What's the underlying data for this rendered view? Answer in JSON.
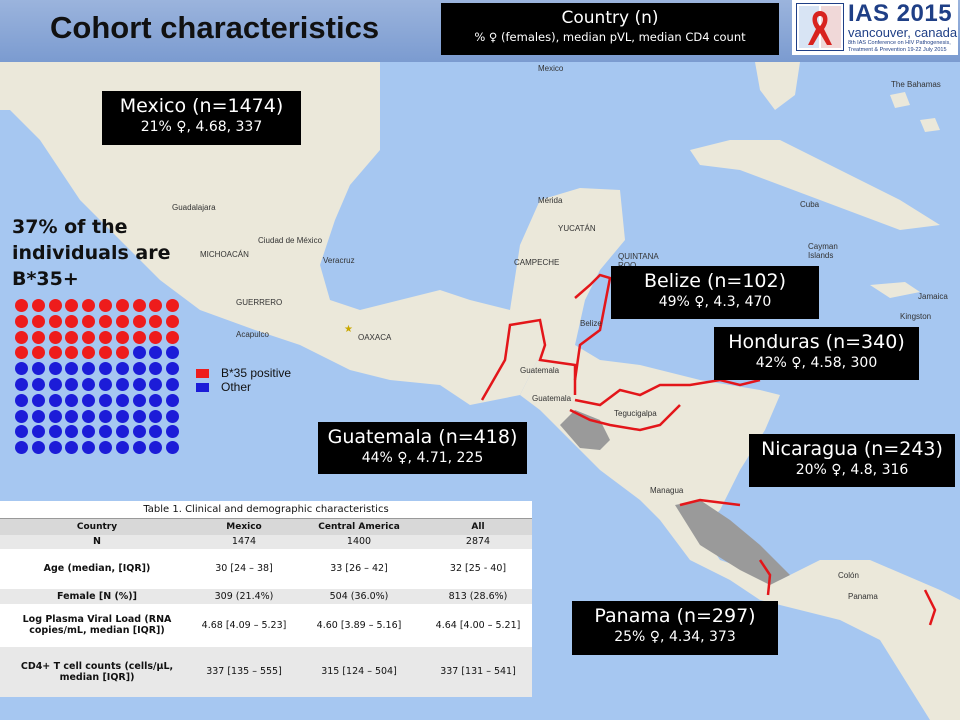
{
  "title": "Cohort characteristics",
  "key_box": {
    "heading": "Country (n)",
    "subheading": "% ♀ (females), median pVL, median CD4 count"
  },
  "logo": {
    "name": "IAS 2015",
    "city": "vancouver, canada",
    "tagline": "8th IAS Conference on HIV Pathogenesis, Treatment & Prevention 19-22 July 2015"
  },
  "countries": {
    "mexico": {
      "heading": "Mexico (n=1474)",
      "stats": "21% ♀, 4.68, 337"
    },
    "belize": {
      "heading": "Belize (n=102)",
      "stats": "49% ♀, 4.3, 470"
    },
    "honduras": {
      "heading": "Honduras (n=340)",
      "stats": "42% ♀, 4.58, 300"
    },
    "guatemala": {
      "heading": "Guatemala (n=418)",
      "stats": "44% ♀, 4.71, 225"
    },
    "nicaragua": {
      "heading": "Nicaragua (n=243)",
      "stats": "20% ♀, 4.8, 316"
    },
    "panama": {
      "heading": "Panama (n=297)",
      "stats": "25% ♀, 4.34, 373"
    }
  },
  "b35": {
    "text": "37% of the individuals are B*35+",
    "positive_count": 37,
    "total": 100,
    "legend": [
      "B*35 positive",
      "Other"
    ],
    "colors": {
      "positive": "#ee1c1c",
      "other": "#1c1cd8"
    }
  },
  "map_labels": {
    "mexico": "Mexico",
    "the_bahamas": "The Bahamas",
    "cuba": "Cuba",
    "cayman_islands": "Cayman Islands",
    "jamaica": "Jamaica",
    "guadalajara": "Guadalajara",
    "michoacan": "Michoacán",
    "ciudad_de_mexico": "Ciudad de México",
    "veracruz": "Veracruz",
    "guerrero": "Guerrero",
    "oaxaca": "Oaxaca",
    "acapulco": "Acapulco",
    "merida": "Mérida",
    "yucatan": "Yucatán",
    "campeche": "Campeche",
    "quintana_roo": "Quintana Roo",
    "belize_map": "Belize",
    "guatemala_map": "Guatemala",
    "guatemala_city": "Guatemala",
    "tegucigalpa": "Tegucigalpa",
    "managua": "Managua",
    "panama_map": "Panama",
    "colon": "Colón",
    "kingston": "Kingston"
  },
  "table": {
    "caption": "Table 1. Clinical and demographic characteristics",
    "columns": [
      "Country",
      "Mexico",
      "Central America",
      "All"
    ],
    "rows": [
      {
        "label": "N",
        "values": [
          "1474",
          "1400",
          "2874"
        ]
      },
      {
        "label": "Age (median, [IQR])",
        "values": [
          "30 [24 – 38]",
          "33 [26 – 42]",
          "32 [25 - 40]"
        ]
      },
      {
        "label": "Female [N (%)]",
        "values": [
          "309 (21.4%)",
          "504 (36.0%)",
          "813 (28.6%)"
        ]
      },
      {
        "label": "Log Plasma Viral Load (RNA copies/mL, median [IQR])",
        "values": [
          "4.68 [4.09 – 5.23]",
          "4.60 [3.89 – 5.16]",
          "4.64 [4.00 – 5.21]"
        ]
      },
      {
        "label": "CD4+ T cell counts (cells/µL, median [IQR])",
        "values": [
          "337 [135 – 555]",
          "315 [124 – 504]",
          "337 [131 – 541]"
        ]
      }
    ]
  },
  "colors": {
    "border_red": "#e3161a",
    "sea": "#a6c7f1",
    "land": "#e9e6d8",
    "highlight_gray": "#9a9a9a",
    "title_bar": "#8fa9d8"
  }
}
